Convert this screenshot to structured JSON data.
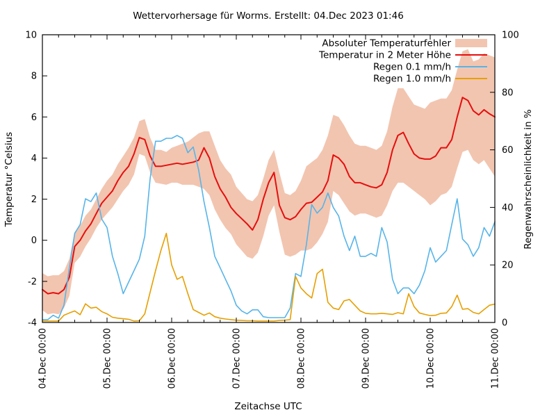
{
  "page": {
    "title": "Wettervorhersage für Worms. Erstellt: 04.Dec 2023 01:46"
  },
  "chart_data": {
    "type": "line",
    "title": "Wettervorhersage für Worms. Erstellt: 04.Dec 2023 01:46",
    "xlabel": "Zeitachse UTC",
    "ylabel": "Temperatur °Celsius",
    "y2label": "Regenwahrscheinlichkeit in %",
    "grid": false,
    "legend_position": "top-right-inside",
    "x_total_hours": 168,
    "hour_step": 2,
    "x_minor_tick_step_hours": 6,
    "x_major_tick_step_hours": 24,
    "x_tick_hours": [
      0,
      24,
      48,
      72,
      96,
      120,
      144,
      168
    ],
    "x_tick_labels": [
      "04.Dec 00:00",
      "05.Dec 00:00",
      "06.Dec 00:00",
      "07.Dec 00:00",
      "08.Dec 00:00",
      "09.Dec 00:00",
      "10.Dec 00:00",
      "11.Dec 00:00"
    ],
    "y_left": {
      "min": -4,
      "max": 10,
      "ticks": [
        -4,
        -2,
        0,
        2,
        4,
        6,
        8,
        10
      ]
    },
    "y_right": {
      "min": 0,
      "max": 100,
      "ticks": [
        0,
        20,
        40,
        60,
        80,
        100
      ]
    },
    "series": [
      {
        "name": "Absoluter Temperaturfehler",
        "type": "band",
        "axis": "left",
        "color": "#f2c5b0",
        "lower": [
          -3.4,
          -3.6,
          -3.55,
          -3.6,
          -3.3,
          -2.7,
          -1.1,
          -0.8,
          -0.3,
          0.1,
          0.6,
          1.0,
          1.3,
          1.6,
          2.0,
          2.4,
          2.7,
          3.2,
          4.2,
          4.1,
          3.3,
          2.8,
          2.75,
          2.7,
          2.8,
          2.8,
          2.7,
          2.7,
          2.7,
          2.6,
          2.5,
          2.2,
          1.5,
          1.0,
          0.6,
          0.3,
          -0.2,
          -0.5,
          -0.8,
          -0.9,
          -0.6,
          0.2,
          1.2,
          1.7,
          0.4,
          -0.7,
          -0.8,
          -0.7,
          -0.5,
          -0.5,
          -0.4,
          -0.1,
          0.3,
          0.9,
          2.4,
          2.2,
          1.8,
          1.4,
          1.2,
          1.3,
          1.3,
          1.2,
          1.1,
          1.2,
          1.7,
          2.4,
          2.8,
          2.8,
          2.6,
          2.4,
          2.2,
          2.0,
          1.7,
          1.9,
          2.2,
          2.3,
          2.6,
          3.5,
          4.3,
          4.4,
          3.9,
          3.7,
          3.9,
          3.5,
          3.1
        ],
        "upper": [
          -1.6,
          -1.75,
          -1.7,
          -1.7,
          -1.5,
          -0.9,
          0.4,
          0.7,
          1.2,
          1.5,
          2.0,
          2.5,
          2.9,
          3.2,
          3.7,
          4.1,
          4.5,
          5.0,
          5.8,
          5.9,
          5.0,
          4.4,
          4.4,
          4.3,
          4.5,
          4.6,
          4.7,
          4.8,
          5.0,
          5.2,
          5.3,
          5.3,
          4.6,
          3.9,
          3.5,
          3.2,
          2.6,
          2.3,
          2.0,
          1.9,
          2.2,
          3.0,
          3.9,
          4.4,
          3.3,
          2.3,
          2.2,
          2.4,
          2.9,
          3.6,
          3.8,
          4.0,
          4.4,
          5.1,
          6.1,
          6.0,
          5.6,
          5.1,
          4.7,
          4.6,
          4.6,
          4.5,
          4.4,
          4.6,
          5.3,
          6.5,
          7.4,
          7.4,
          7.0,
          6.6,
          6.5,
          6.4,
          6.7,
          6.8,
          6.9,
          6.9,
          7.3,
          8.3,
          9.2,
          9.3,
          8.7,
          8.8,
          9.1,
          9.0,
          8.9
        ]
      },
      {
        "name": "Temperatur in 2 Meter Höhe",
        "type": "line",
        "axis": "left",
        "color": "#e60e0e",
        "width": 2,
        "values": [
          -2.4,
          -2.6,
          -2.55,
          -2.6,
          -2.4,
          -1.8,
          -0.3,
          0.0,
          0.45,
          0.8,
          1.3,
          1.8,
          2.1,
          2.4,
          2.9,
          3.3,
          3.6,
          4.2,
          5.0,
          4.9,
          4.1,
          3.6,
          3.6,
          3.65,
          3.7,
          3.75,
          3.7,
          3.75,
          3.8,
          3.9,
          4.5,
          4.0,
          3.1,
          2.5,
          2.1,
          1.6,
          1.3,
          1.05,
          0.8,
          0.5,
          1.0,
          2.0,
          2.8,
          3.3,
          1.7,
          1.1,
          1.0,
          1.15,
          1.5,
          1.8,
          1.85,
          2.1,
          2.35,
          2.9,
          4.15,
          4.0,
          3.7,
          3.1,
          2.8,
          2.8,
          2.7,
          2.6,
          2.55,
          2.7,
          3.3,
          4.4,
          5.1,
          5.25,
          4.7,
          4.2,
          4.0,
          3.95,
          3.95,
          4.1,
          4.5,
          4.5,
          4.9,
          6.0,
          6.95,
          6.8,
          6.3,
          6.1,
          6.35,
          6.15,
          6.0
        ]
      },
      {
        "name": "Regen 0.1 mm/h",
        "type": "line",
        "axis": "right",
        "color": "#56b4e9",
        "width": 1.6,
        "values": [
          1,
          1,
          2.5,
          1.5,
          6,
          19,
          31,
          34,
          43,
          42,
          45,
          36,
          33,
          23,
          17,
          10,
          14,
          18,
          22,
          30,
          50,
          63,
          63,
          64,
          64,
          65,
          64,
          59,
          61,
          53,
          42,
          33,
          23,
          19,
          15,
          11,
          6,
          4,
          3,
          4.4,
          4.4,
          2,
          1.7,
          1.7,
          1.7,
          1.7,
          5,
          17,
          16,
          27,
          41,
          38,
          40,
          45,
          40,
          37,
          30,
          25,
          30,
          23,
          23,
          24,
          23,
          33,
          28,
          15,
          10,
          12,
          12,
          10,
          13,
          18,
          26,
          21,
          23,
          25,
          34,
          43,
          29,
          27,
          23,
          26,
          33,
          30,
          35
        ]
      },
      {
        "name": "Regen 1.0 mm/h",
        "type": "line",
        "axis": "right",
        "color": "#e69f00",
        "width": 1.6,
        "values": [
          0.5,
          0.5,
          0.5,
          0.5,
          2.5,
          3.3,
          4,
          2.7,
          6.5,
          5,
          5.3,
          3.8,
          3,
          1.8,
          1.5,
          1.3,
          1.1,
          0.5,
          0.6,
          3,
          10.5,
          18,
          25,
          31,
          20,
          15,
          16,
          10,
          4.5,
          3.5,
          2.5,
          3.3,
          2,
          1.5,
          1.2,
          1,
          0.8,
          0.7,
          0.6,
          0.6,
          0.5,
          0.5,
          0.5,
          0.5,
          0.7,
          0.8,
          1,
          16,
          12,
          10,
          8.5,
          17,
          18.5,
          7,
          5,
          4.5,
          7.5,
          8,
          6,
          4,
          3.2,
          3,
          3,
          3.2,
          3,
          2.8,
          3.4,
          3,
          10,
          5.5,
          3.3,
          2.8,
          2.4,
          2.5,
          3.2,
          3.3,
          5.5,
          9.5,
          4.6,
          4.8,
          3.5,
          3,
          4.5,
          6,
          6.4
        ]
      }
    ]
  }
}
